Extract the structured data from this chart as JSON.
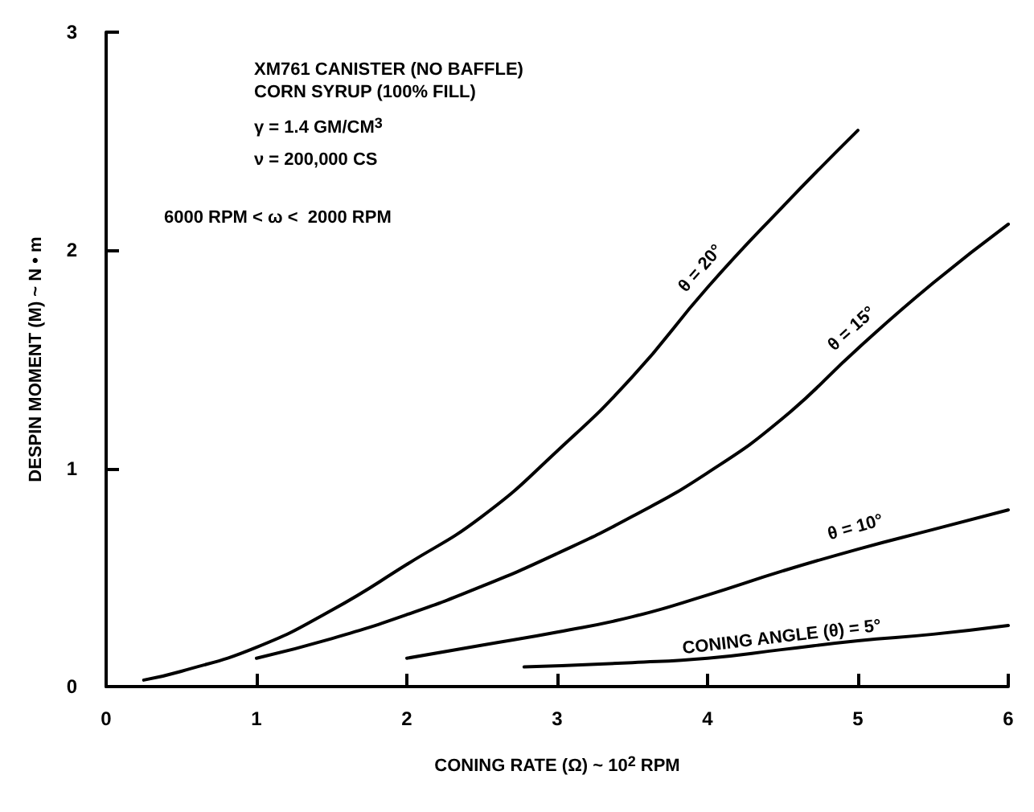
{
  "chart_data": {
    "type": "line",
    "xlabel": "CONING RATE (Ω) ~ 10$^{2}$ RPM",
    "ylabel": "DESPIN MOMENT (M) ~ N • m",
    "xlim": [
      0,
      6
    ],
    "xticks": [
      0,
      1,
      2,
      3,
      4,
      5,
      6
    ],
    "ylim": [
      0,
      3
    ],
    "yticks": [
      0,
      1,
      2,
      3
    ],
    "grid": false,
    "legend": false,
    "marker": "none",
    "line_style": "solid",
    "annotations": [
      "XM761 CANISTER (NO BAFFLE)",
      "CORN SYRUP (100% FILL)",
      "γ = 1.4 GM/CM$^{3}$",
      "ν = 200,000 CS",
      "6000 RPM < ω <  2000 RPM"
    ],
    "series": [
      {
        "name": "θ = 20°",
        "color": "#000000",
        "x": [
          0.25,
          0.5,
          1,
          1.5,
          2,
          2.5,
          3,
          3.5,
          4,
          4.5,
          5
        ],
        "values": [
          0.03,
          0.07,
          0.18,
          0.35,
          0.56,
          0.78,
          1.08,
          1.42,
          1.83,
          2.2,
          2.55
        ]
      },
      {
        "name": "θ = 15°",
        "color": "#000000",
        "x": [
          1,
          1.5,
          2,
          2.5,
          3,
          3.5,
          4,
          4.5,
          5,
          5.5,
          6
        ],
        "values": [
          0.13,
          0.22,
          0.33,
          0.46,
          0.61,
          0.78,
          0.98,
          1.23,
          1.55,
          1.85,
          2.12
        ]
      },
      {
        "name": "θ = 10°",
        "color": "#000000",
        "x": [
          2,
          2.5,
          3,
          3.5,
          4,
          4.5,
          5,
          5.5,
          6
        ],
        "values": [
          0.13,
          0.19,
          0.25,
          0.32,
          0.42,
          0.53,
          0.63,
          0.72,
          0.81
        ]
      },
      {
        "name": "CONING ANGLE (θ) = 5°",
        "color": "#000000",
        "x": [
          2.78,
          3.5,
          4,
          4.5,
          5,
          5.5,
          6
        ],
        "values": [
          0.09,
          0.11,
          0.13,
          0.17,
          0.21,
          0.24,
          0.28
        ]
      }
    ]
  }
}
